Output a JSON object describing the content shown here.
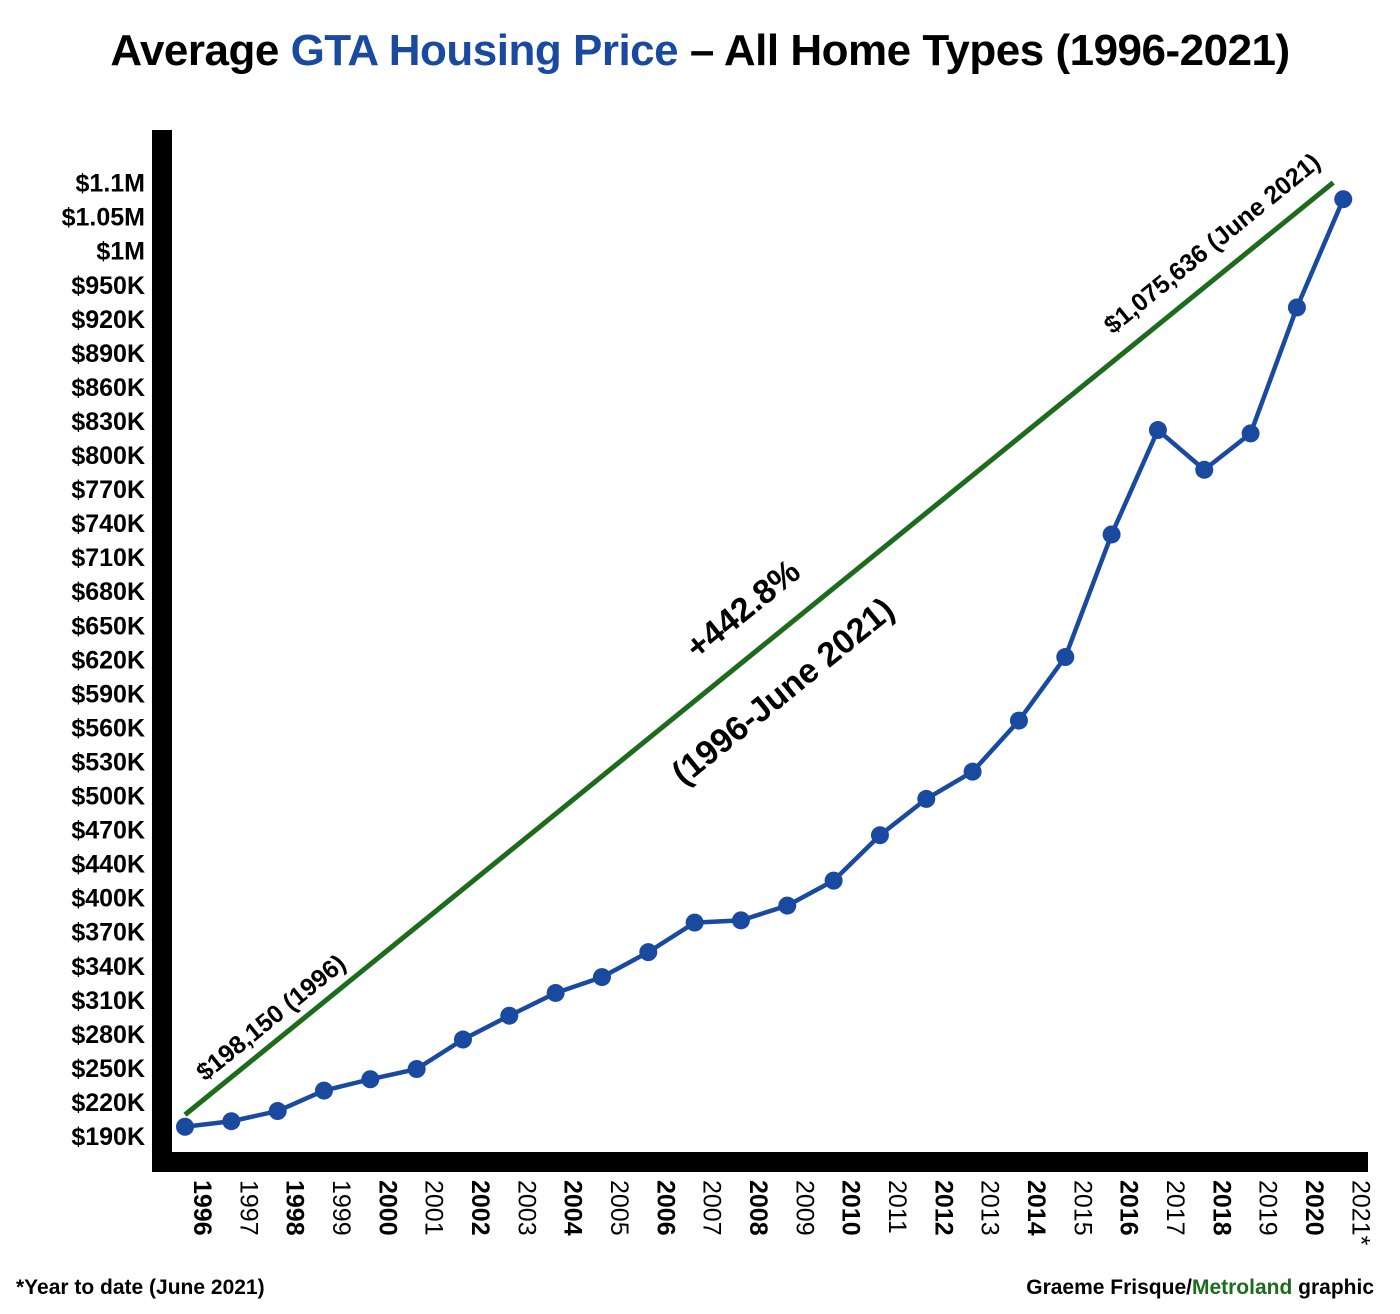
{
  "title": {
    "part1": "Average ",
    "highlight": "GTA Housing Price",
    "part2": " – All Home Types (1996-2021)",
    "highlight_color": "#1a4aa0"
  },
  "footnote": "*Year to date (June 2021)",
  "credit": {
    "author": "Graeme Frisque/",
    "brand": "Metroland",
    "suffix": " graphic",
    "brand_color": "#1d6b1d"
  },
  "chart_data": {
    "type": "line",
    "title": "Average GTA Housing Price – All Home Types (1996-2021)",
    "xlabel": "",
    "ylabel": "",
    "grid": false,
    "axis_note": "y-axis tick labels are irregularly spaced (each label one step apart regardless of value)",
    "y_tick_labels": [
      "$190K",
      "$220K",
      "$250K",
      "$280K",
      "$310K",
      "$340K",
      "$370K",
      "$400K",
      "$440K",
      "$470K",
      "$500K",
      "$530K",
      "$560K",
      "$590K",
      "$620K",
      "$650K",
      "$680K",
      "$710K",
      "$740K",
      "$770K",
      "$800K",
      "$830K",
      "$860K",
      "$890K",
      "$920K",
      "$950K",
      "$1M",
      "$1.05M",
      "$1.1M"
    ],
    "y_tick_values": [
      190000,
      220000,
      250000,
      280000,
      310000,
      340000,
      370000,
      400000,
      440000,
      470000,
      500000,
      530000,
      560000,
      590000,
      620000,
      650000,
      680000,
      710000,
      740000,
      770000,
      800000,
      830000,
      860000,
      890000,
      920000,
      950000,
      1000000,
      1050000,
      1100000
    ],
    "x_labels": [
      "1996",
      "1997",
      "1998",
      "1999",
      "2000",
      "2001",
      "2002",
      "2003",
      "2004",
      "2005",
      "2006",
      "2007",
      "2008",
      "2009",
      "2010",
      "2011",
      "2012",
      "2013",
      "2014",
      "2015",
      "2016",
      "2017",
      "2018",
      "2019",
      "2020",
      "2021*"
    ],
    "x_bold": [
      true,
      false,
      true,
      false,
      true,
      false,
      true,
      false,
      true,
      false,
      true,
      false,
      true,
      false,
      true,
      false,
      true,
      false,
      true,
      false,
      true,
      false,
      true,
      false,
      true,
      false
    ],
    "series": [
      {
        "color": "#1a4aa0",
        "values": [
          198150,
          203000,
          212000,
          230000,
          240000,
          249000,
          275000,
          296000,
          316000,
          330000,
          352000,
          378000,
          380000,
          393000,
          420000,
          465000,
          497000,
          521000,
          566000,
          622000,
          730000,
          822000,
          787000,
          819000,
          930000,
          1075636
        ]
      }
    ],
    "trend_line": {
      "color": "#1d6b1d",
      "from": {
        "x": "1996",
        "y": 198150
      },
      "to": {
        "x": "2021*",
        "y": 1100000
      }
    },
    "annotations": {
      "start_label": "$198,150 (1996)",
      "end_label": "$1,075,636 (June 2021)",
      "change_label": "+442.8%",
      "change_period": "(1996-June 2021)"
    }
  }
}
